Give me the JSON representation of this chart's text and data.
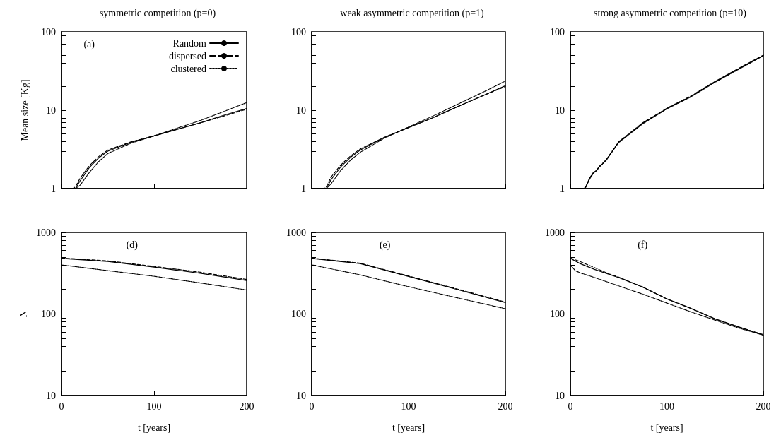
{
  "chart_data": [
    {
      "type": "line",
      "title": "symmetric competition (p=0)",
      "ylabel": "Mean size [Kg]",
      "annotations": [
        "(a)"
      ],
      "log": "y",
      "xlim": [
        0,
        200
      ],
      "xticks": [
        0,
        100,
        200
      ],
      "ylim": [
        1,
        100
      ],
      "yticks": [
        1,
        {
          "value": 2,
          "label": null
        },
        {
          "value": 3,
          "label": null
        },
        {
          "value": 4,
          "label": null
        },
        {
          "value": 5,
          "label": null
        },
        {
          "value": 6,
          "label": null
        },
        {
          "value": 7,
          "label": null
        },
        {
          "value": 8,
          "label": null
        },
        {
          "value": 9,
          "label": null
        },
        10,
        {
          "value": 20,
          "label": null
        },
        {
          "value": 30,
          "label": null
        },
        {
          "value": 40,
          "label": null
        },
        {
          "value": 50,
          "label": null
        },
        {
          "value": 60,
          "label": null
        },
        {
          "value": 70,
          "label": null
        },
        {
          "value": 80,
          "label": null
        },
        {
          "value": 90,
          "label": null
        },
        100
      ],
      "tick_labels": "y",
      "legend": "top right",
      "series": [
        {
          "name": "Random",
          "color": "#000000",
          "line_style": "solid",
          "x": [
            0,
            15,
            20,
            30,
            40,
            50,
            75,
            100,
            125,
            150,
            175,
            200
          ],
          "values": [
            1,
            1,
            1.25,
            1.85,
            2.45,
            3.0,
            3.9,
            4.7,
            5.7,
            6.9,
            8.6,
            10.5
          ]
        },
        {
          "name": "dispersed",
          "color": "#000000",
          "line_style": "dashed",
          "x": [
            0,
            12,
            15,
            20,
            30,
            40,
            50,
            75,
            100,
            125,
            150,
            175,
            200
          ],
          "values": [
            1,
            1,
            1.05,
            1.35,
            1.95,
            2.55,
            3.1,
            3.95,
            4.7,
            5.7,
            6.9,
            8.4,
            10.3
          ]
        },
        {
          "name": "clustered",
          "color": "#000000",
          "line_style": "dotted",
          "x": [
            0,
            15,
            20,
            30,
            40,
            50,
            75,
            100,
            125,
            150,
            175,
            200
          ],
          "values": [
            1,
            1,
            1.1,
            1.6,
            2.2,
            2.8,
            3.8,
            4.7,
            5.9,
            7.4,
            9.6,
            12.5
          ]
        }
      ]
    },
    {
      "type": "line",
      "title": "weak asymmetric competition (p=1)",
      "log": "y",
      "xlim": [
        0,
        200
      ],
      "xticks": [
        0,
        100,
        200
      ],
      "ylim": [
        1,
        100
      ],
      "yticks": [
        1,
        {
          "value": 2,
          "label": null
        },
        {
          "value": 3,
          "label": null
        },
        {
          "value": 4,
          "label": null
        },
        {
          "value": 5,
          "label": null
        },
        {
          "value": 6,
          "label": null
        },
        {
          "value": 7,
          "label": null
        },
        {
          "value": 8,
          "label": null
        },
        {
          "value": 9,
          "label": null
        },
        10,
        {
          "value": 20,
          "label": null
        },
        {
          "value": 30,
          "label": null
        },
        {
          "value": 40,
          "label": null
        },
        {
          "value": 50,
          "label": null
        },
        {
          "value": 60,
          "label": null
        },
        {
          "value": 70,
          "label": null
        },
        {
          "value": 80,
          "label": null
        },
        {
          "value": 90,
          "label": null
        },
        100
      ],
      "tick_labels": "y",
      "series": [
        {
          "color": "#000000",
          "line_style": "solid",
          "x": [
            0,
            15,
            20,
            30,
            40,
            50,
            75,
            100,
            125,
            150,
            175,
            200
          ],
          "values": [
            1,
            1,
            1.3,
            1.9,
            2.5,
            3.1,
            4.5,
            6.0,
            8.0,
            11,
            15,
            20.5
          ]
        },
        {
          "color": "#000000",
          "line_style": "dashed",
          "x": [
            0,
            13,
            15,
            20,
            30,
            40,
            50,
            75,
            100,
            125,
            150,
            175,
            200
          ],
          "values": [
            1,
            1,
            1.05,
            1.4,
            2.0,
            2.6,
            3.2,
            4.5,
            6.0,
            8.0,
            11,
            15,
            20
          ]
        },
        {
          "color": "#000000",
          "line_style": "dotted",
          "x": [
            0,
            15,
            20,
            30,
            40,
            50,
            75,
            100,
            125,
            150,
            175,
            200
          ],
          "values": [
            1,
            1,
            1.15,
            1.7,
            2.3,
            2.9,
            4.4,
            6.1,
            8.4,
            11.8,
            16.5,
            23.5
          ]
        }
      ]
    },
    {
      "type": "line",
      "title": "strong asymmetric competition (p=10)",
      "log": "y",
      "xlim": [
        0,
        200
      ],
      "xticks": [
        0,
        100,
        200
      ],
      "ylim": [
        1,
        100
      ],
      "yticks": [
        1,
        {
          "value": 2,
          "label": null
        },
        {
          "value": 3,
          "label": null
        },
        {
          "value": 4,
          "label": null
        },
        {
          "value": 5,
          "label": null
        },
        {
          "value": 6,
          "label": null
        },
        {
          "value": 7,
          "label": null
        },
        {
          "value": 8,
          "label": null
        },
        {
          "value": 9,
          "label": null
        },
        10,
        {
          "value": 20,
          "label": null
        },
        {
          "value": 30,
          "label": null
        },
        {
          "value": 40,
          "label": null
        },
        {
          "value": 50,
          "label": null
        },
        {
          "value": 60,
          "label": null
        },
        {
          "value": 70,
          "label": null
        },
        {
          "value": 80,
          "label": null
        },
        {
          "value": 90,
          "label": null
        },
        100
      ],
      "tick_labels": "y",
      "series": [
        {
          "color": "#000000",
          "line_style": "solid",
          "x": [
            0,
            14,
            16,
            20,
            24,
            27,
            30,
            37,
            50,
            75,
            100,
            125,
            150,
            175,
            200
          ],
          "values": [
            1,
            1,
            1.05,
            1.35,
            1.6,
            1.7,
            1.9,
            2.3,
            3.9,
            6.8,
            10.5,
            15,
            23,
            34,
            50
          ]
        },
        {
          "color": "#000000",
          "line_style": "dashed",
          "x": [
            0,
            14,
            16,
            20,
            24,
            27,
            30,
            37,
            50,
            75,
            100,
            125,
            150,
            175,
            200
          ],
          "values": [
            1,
            1,
            1.06,
            1.37,
            1.62,
            1.72,
            1.92,
            2.32,
            3.95,
            6.9,
            10.6,
            15.2,
            23.3,
            34.5,
            50.5
          ]
        },
        {
          "color": "#000000",
          "line_style": "dotted",
          "x": [
            0,
            14,
            16,
            20,
            24,
            27,
            30,
            37,
            50,
            75,
            100,
            125,
            150,
            175,
            200
          ],
          "values": [
            1,
            1,
            1.04,
            1.33,
            1.58,
            1.68,
            1.88,
            2.28,
            3.85,
            6.7,
            10.4,
            14.8,
            22.7,
            33.5,
            49.5
          ]
        }
      ]
    },
    {
      "type": "line",
      "xlabel": "t [years]",
      "ylabel": "N",
      "annotations": [
        "(d)"
      ],
      "log": "y",
      "xlim": [
        0,
        200
      ],
      "xticks": [
        0,
        100,
        200
      ],
      "ylim": [
        10,
        1000
      ],
      "yticks": [
        10,
        {
          "value": 20,
          "label": null
        },
        {
          "value": 30,
          "label": null
        },
        {
          "value": 40,
          "label": null
        },
        {
          "value": 50,
          "label": null
        },
        {
          "value": 60,
          "label": null
        },
        {
          "value": 70,
          "label": null
        },
        {
          "value": 80,
          "label": null
        },
        {
          "value": 90,
          "label": null
        },
        100,
        {
          "value": 200,
          "label": null
        },
        {
          "value": 300,
          "label": null
        },
        {
          "value": 400,
          "label": null
        },
        {
          "value": 500,
          "label": null
        },
        {
          "value": 600,
          "label": null
        },
        {
          "value": 700,
          "label": null
        },
        {
          "value": 800,
          "label": null
        },
        {
          "value": 900,
          "label": null
        },
        1000
      ],
      "series": [
        {
          "color": "#000000",
          "line_style": "solid",
          "x": [
            0,
            50,
            100,
            150,
            200
          ],
          "values": [
            480,
            440,
            375,
            315,
            257
          ]
        },
        {
          "color": "#000000",
          "line_style": "dashed",
          "x": [
            0,
            50,
            100,
            150,
            200
          ],
          "values": [
            485,
            448,
            383,
            325,
            265
          ]
        },
        {
          "color": "#000000",
          "line_style": "dotted",
          "x": [
            0,
            50,
            100,
            150,
            200
          ],
          "values": [
            400,
            340,
            290,
            240,
            197
          ]
        }
      ]
    },
    {
      "type": "line",
      "xlabel": "t [years]",
      "annotations": [
        "(e)"
      ],
      "log": "y",
      "xlim": [
        0,
        200
      ],
      "xticks": [
        0,
        100,
        200
      ],
      "ylim": [
        10,
        1000
      ],
      "yticks": [
        10,
        {
          "value": 20,
          "label": null
        },
        {
          "value": 30,
          "label": null
        },
        {
          "value": 40,
          "label": null
        },
        {
          "value": 50,
          "label": null
        },
        {
          "value": 60,
          "label": null
        },
        {
          "value": 70,
          "label": null
        },
        {
          "value": 80,
          "label": null
        },
        {
          "value": 90,
          "label": null
        },
        100,
        {
          "value": 200,
          "label": null
        },
        {
          "value": 300,
          "label": null
        },
        {
          "value": 400,
          "label": null
        },
        {
          "value": 500,
          "label": null
        },
        {
          "value": 600,
          "label": null
        },
        {
          "value": 700,
          "label": null
        },
        {
          "value": 800,
          "label": null
        },
        {
          "value": 900,
          "label": null
        },
        1000
      ],
      "series": [
        {
          "color": "#000000",
          "line_style": "solid",
          "x": [
            0,
            50,
            100,
            150,
            200
          ],
          "values": [
            480,
            415,
            288,
            200,
            138
          ]
        },
        {
          "color": "#000000",
          "line_style": "dashed",
          "x": [
            0,
            50,
            100,
            150,
            200
          ],
          "values": [
            485,
            420,
            292,
            203,
            140
          ]
        },
        {
          "color": "#000000",
          "line_style": "dotted",
          "x": [
            0,
            50,
            100,
            150,
            200
          ],
          "values": [
            400,
            302,
            216,
            158,
            116
          ]
        }
      ]
    },
    {
      "type": "line",
      "xlabel": "t [years]",
      "annotations": [
        "(f)"
      ],
      "log": "y",
      "xlim": [
        0,
        200
      ],
      "xticks": [
        0,
        100,
        200
      ],
      "ylim": [
        10,
        1000
      ],
      "yticks": [
        10,
        {
          "value": 20,
          "label": null
        },
        {
          "value": 30,
          "label": null
        },
        {
          "value": 40,
          "label": null
        },
        {
          "value": 50,
          "label": null
        },
        {
          "value": 60,
          "label": null
        },
        {
          "value": 70,
          "label": null
        },
        {
          "value": 80,
          "label": null
        },
        {
          "value": 90,
          "label": null
        },
        100,
        {
          "value": 200,
          "label": null
        },
        {
          "value": 300,
          "label": null
        },
        {
          "value": 400,
          "label": null
        },
        {
          "value": 500,
          "label": null
        },
        {
          "value": 600,
          "label": null
        },
        {
          "value": 700,
          "label": null
        },
        {
          "value": 800,
          "label": null
        },
        {
          "value": 900,
          "label": null
        },
        1000
      ],
      "series": [
        {
          "color": "#000000",
          "line_style": "solid",
          "x": [
            0,
            10,
            25,
            50,
            75,
            100,
            125,
            150,
            175,
            200
          ],
          "values": [
            480,
            415,
            352,
            279,
            214,
            153,
            117,
            87,
            69,
            55
          ]
        },
        {
          "color": "#000000",
          "line_style": "dashed",
          "x": [
            0,
            10,
            25,
            40,
            50,
            75,
            100,
            125,
            150,
            175,
            200
          ],
          "values": [
            485,
            440,
            370,
            310,
            283,
            214,
            153,
            117,
            87,
            69,
            56
          ]
        },
        {
          "color": "#000000",
          "line_style": "dotted",
          "x": [
            0,
            5,
            10,
            25,
            50,
            75,
            100,
            125,
            150,
            175,
            200
          ],
          "values": [
            400,
            340,
            320,
            280,
            221,
            175,
            136,
            106,
            84,
            67,
            55
          ]
        }
      ]
    }
  ]
}
